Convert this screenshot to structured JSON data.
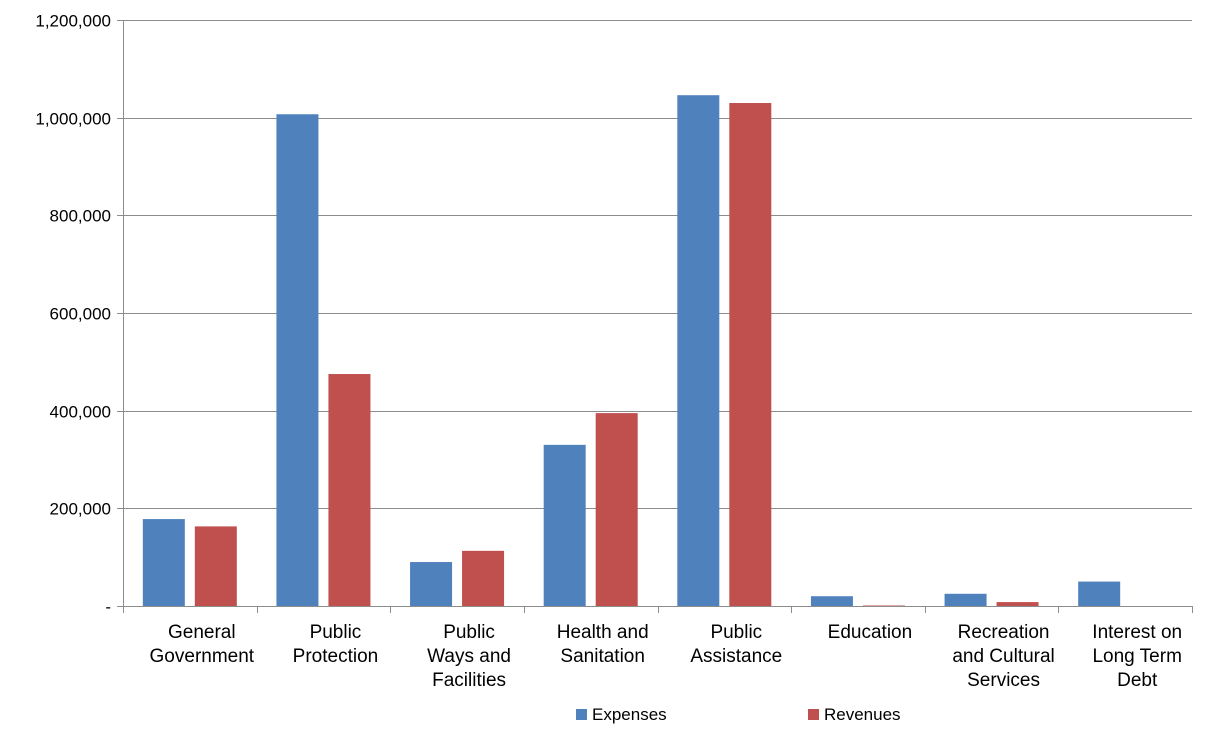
{
  "chart_data": {
    "type": "bar",
    "categories": [
      [
        "General",
        "Government"
      ],
      [
        "Public",
        "Protection"
      ],
      [
        "Public",
        "Ways and",
        "Facilities"
      ],
      [
        "Health and",
        "Sanitation"
      ],
      [
        "Public",
        "Assistance"
      ],
      [
        "Education"
      ],
      [
        "Recreation",
        "and Cultural",
        "Services"
      ],
      [
        "Interest on",
        "Long Term",
        "Debt"
      ]
    ],
    "series": [
      {
        "name": "Expenses",
        "color": "#4f81bd",
        "values": [
          178000,
          1007000,
          90000,
          330000,
          1046000,
          20000,
          25000,
          50000
        ]
      },
      {
        "name": "Revenues",
        "color": "#c0504d",
        "values": [
          163000,
          475000,
          113000,
          395000,
          1030000,
          1000,
          8000,
          0
        ]
      }
    ],
    "ylim": [
      0,
      1200000
    ],
    "yticks": [
      0,
      200000,
      400000,
      600000,
      800000,
      1000000,
      1200000
    ],
    "ytick_labels": [
      "-",
      "200,000",
      "400,000",
      "600,000",
      "800,000",
      "1,000,000",
      "1,200,000"
    ],
    "grid": true,
    "legend_position": "bottom",
    "title": "",
    "xlabel": "",
    "ylabel": ""
  }
}
